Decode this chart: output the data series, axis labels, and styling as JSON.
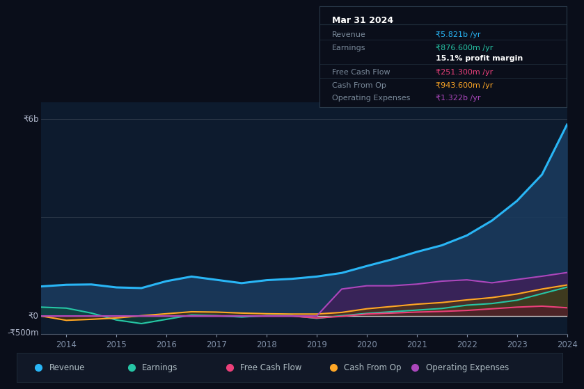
{
  "bg_color": "#0a0e1a",
  "chart_bg": "#0d1b2e",
  "years": [
    2013.5,
    2014.0,
    2014.5,
    2015.0,
    2015.5,
    2016.0,
    2016.5,
    2017.0,
    2017.5,
    2018.0,
    2018.5,
    2019.0,
    2019.5,
    2020.0,
    2020.5,
    2021.0,
    2021.5,
    2022.0,
    2022.5,
    2023.0,
    2023.5,
    2024.0
  ],
  "revenue": [
    900,
    950,
    960,
    870,
    850,
    1060,
    1200,
    1100,
    1000,
    1090,
    1130,
    1200,
    1310,
    1520,
    1720,
    1950,
    2150,
    2450,
    2900,
    3500,
    4300,
    5821
  ],
  "earnings": [
    270,
    240,
    90,
    -120,
    -230,
    -100,
    30,
    10,
    -30,
    10,
    10,
    -70,
    10,
    80,
    130,
    180,
    230,
    330,
    380,
    480,
    680,
    877
  ],
  "fcf": [
    0,
    0,
    0,
    0,
    0,
    0,
    0,
    0,
    0,
    0,
    0,
    -60,
    -10,
    60,
    90,
    120,
    140,
    170,
    220,
    270,
    300,
    251
  ],
  "cashop": [
    0,
    -130,
    -100,
    -60,
    10,
    70,
    130,
    120,
    90,
    70,
    60,
    60,
    110,
    220,
    290,
    360,
    410,
    490,
    560,
    670,
    820,
    944
  ],
  "opex": [
    0,
    0,
    0,
    0,
    0,
    0,
    0,
    0,
    0,
    0,
    0,
    0,
    820,
    920,
    920,
    970,
    1060,
    1100,
    1010,
    1110,
    1210,
    1322
  ],
  "ylim_min": -550,
  "ylim_max": 6500,
  "revenue_color": "#29b6f6",
  "earnings_color": "#26c6a6",
  "fcf_color": "#ec407a",
  "cashop_color": "#ffa726",
  "opex_color": "#ab47bc",
  "revenue_fill": "#1a3a5c",
  "earnings_fill": "#0d4a3a",
  "fcf_fill": "#5a1030",
  "cashop_fill": "#5a3a00",
  "opex_fill": "#4a1a5a",
  "xlabel_years": [
    2014,
    2015,
    2016,
    2017,
    2018,
    2019,
    2020,
    2021,
    2022,
    2023,
    2024
  ],
  "info_title": "Mar 31 2024",
  "info_rows": [
    {
      "label": "Revenue",
      "value": "₹5.821b /yr",
      "color": "#29b6f6"
    },
    {
      "label": "Earnings",
      "value": "₹876.600m /yr",
      "color": "#26c6a6"
    },
    {
      "label": "",
      "value": "15.1% profit margin",
      "color": "#ffffff"
    },
    {
      "label": "Free Cash Flow",
      "value": "₹251.300m /yr",
      "color": "#ec407a"
    },
    {
      "label": "Cash From Op",
      "value": "₹943.600m /yr",
      "color": "#ffa726"
    },
    {
      "label": "Operating Expenses",
      "value": "₹1.322b /yr",
      "color": "#ab47bc"
    }
  ],
  "legend": [
    {
      "label": "Revenue",
      "color": "#29b6f6"
    },
    {
      "label": "Earnings",
      "color": "#26c6a6"
    },
    {
      "label": "Free Cash Flow",
      "color": "#ec407a"
    },
    {
      "label": "Cash From Op",
      "color": "#ffa726"
    },
    {
      "label": "Operating Expenses",
      "color": "#ab47bc"
    }
  ]
}
